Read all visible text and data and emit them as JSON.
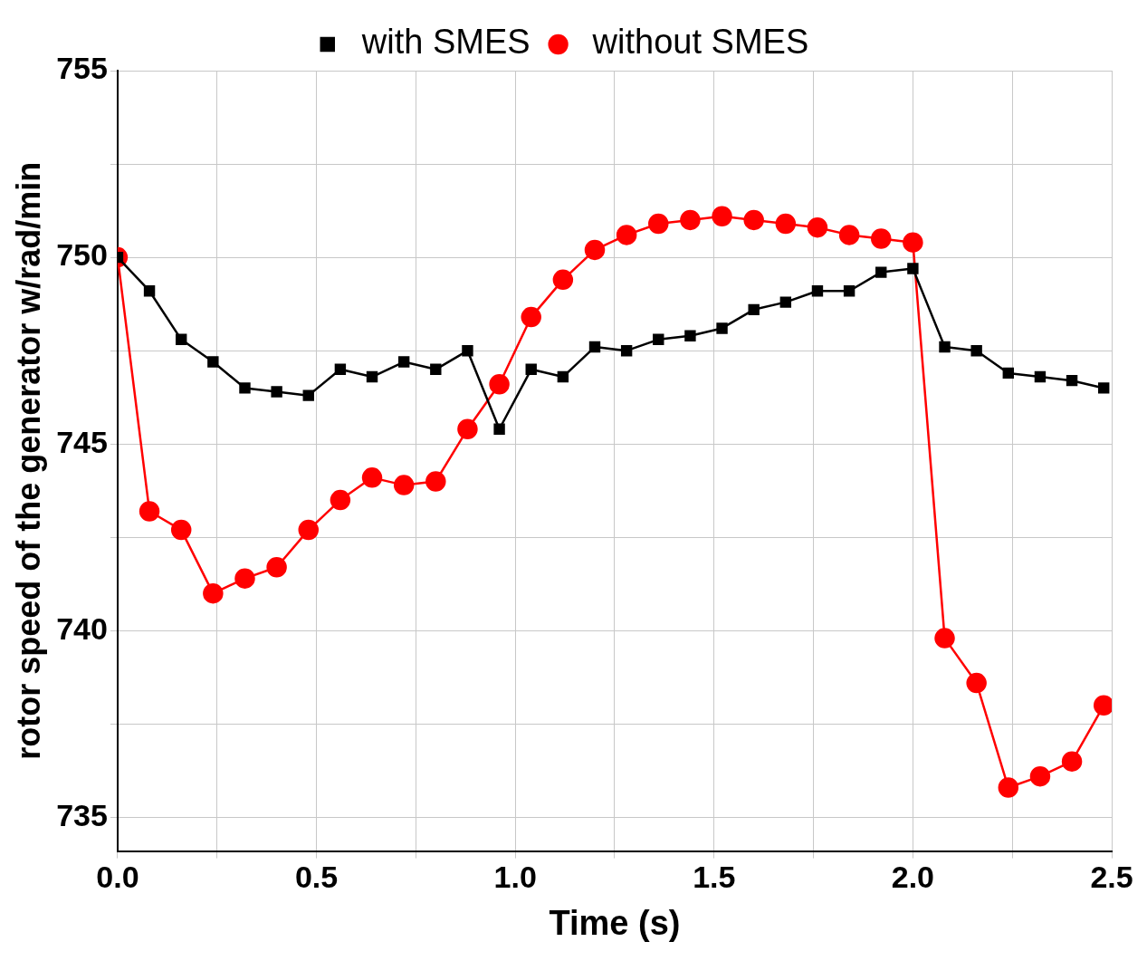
{
  "chart_data": {
    "type": "line",
    "xlabel": "Time (s)",
    "ylabel": "rotor speed of the generator w/rad/min",
    "x": [
      0,
      0.08,
      0.16,
      0.24,
      0.32,
      0.4,
      0.48,
      0.56,
      0.64,
      0.72,
      0.8,
      0.88,
      0.96,
      1.04,
      1.12,
      1.2,
      1.28,
      1.36,
      1.44,
      1.52,
      1.6,
      1.68,
      1.76,
      1.84,
      1.92,
      2.0,
      2.08,
      2.16,
      2.24,
      2.32,
      2.4,
      2.48
    ],
    "series": [
      {
        "name": "with SMES",
        "color": "#000000",
        "marker": "square",
        "values": [
          750.0,
          749.1,
          747.8,
          747.2,
          746.5,
          746.4,
          746.3,
          747.0,
          746.8,
          747.2,
          747.0,
          747.5,
          745.4,
          747.0,
          746.8,
          747.6,
          747.5,
          747.8,
          747.9,
          748.1,
          748.6,
          748.8,
          749.1,
          749.1,
          749.6,
          749.7,
          747.6,
          747.5,
          746.9,
          746.8,
          746.7,
          746.5
        ]
      },
      {
        "name": "without SMES",
        "color": "#ff0000",
        "marker": "circle",
        "values": [
          750.0,
          743.2,
          742.7,
          741.0,
          741.4,
          741.7,
          742.7,
          743.5,
          744.1,
          743.9,
          744.0,
          745.4,
          746.6,
          748.4,
          749.4,
          750.2,
          750.6,
          750.9,
          751.0,
          751.1,
          751.0,
          750.9,
          750.8,
          750.6,
          750.5,
          750.4,
          739.8,
          738.6,
          735.8,
          736.1,
          736.5,
          738.0
        ]
      }
    ],
    "xlim": [
      0,
      2.5
    ],
    "xticks": [
      {
        "value": 0,
        "label": "0.0"
      },
      {
        "value": 0.25,
        "label": null
      },
      {
        "value": 0.5,
        "label": "0.5"
      },
      {
        "value": 0.75,
        "label": null
      },
      {
        "value": 1,
        "label": "1.0"
      },
      {
        "value": 1.25,
        "label": null
      },
      {
        "value": 1.5,
        "label": "1.5"
      },
      {
        "value": 1.75,
        "label": null
      },
      {
        "value": 2,
        "label": "2.0"
      },
      {
        "value": 2.25,
        "label": null
      },
      {
        "value": 2.5,
        "label": "2.5"
      }
    ],
    "ylim": [
      734.1,
      755
    ],
    "yticks": [
      735,
      {
        "value": 737.5,
        "label": null
      },
      740,
      {
        "value": 742.5,
        "label": null
      },
      745,
      {
        "value": 747.5,
        "label": null
      },
      750,
      {
        "value": 752.5,
        "label": null
      },
      755
    ],
    "grid": true,
    "legend": "top",
    "line_style": "solid"
  }
}
